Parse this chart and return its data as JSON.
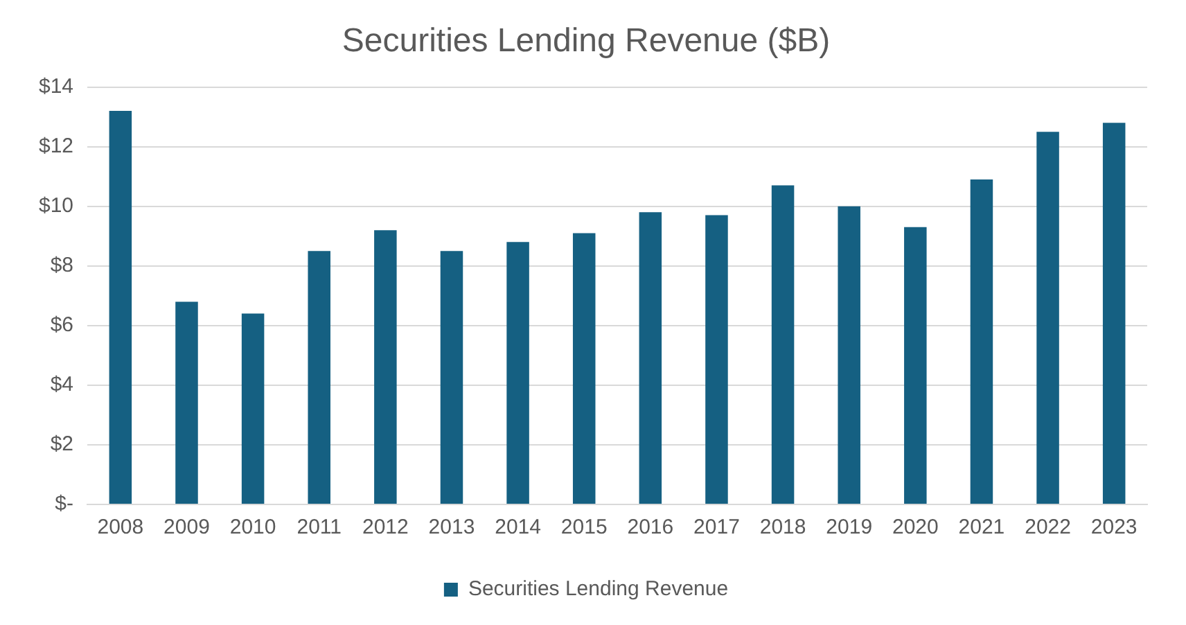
{
  "chart_data": {
    "type": "bar",
    "title": "Securities Lending Revenue ($B)",
    "categories": [
      "2008",
      "2009",
      "2010",
      "2011",
      "2012",
      "2013",
      "2014",
      "2015",
      "2016",
      "2017",
      "2018",
      "2019",
      "2020",
      "2021",
      "2022",
      "2023"
    ],
    "series": [
      {
        "name": "Securities Lending Revenue",
        "color": "#156082",
        "values": [
          13.2,
          6.8,
          6.4,
          8.5,
          9.2,
          8.5,
          8.8,
          9.1,
          9.8,
          9.7,
          10.7,
          10.0,
          9.3,
          10.9,
          12.5,
          12.8
        ]
      }
    ],
    "ylim": [
      0,
      14
    ],
    "yticks": [
      {
        "value": 0,
        "label": "$-"
      },
      {
        "value": 2,
        "label": "$2"
      },
      {
        "value": 4,
        "label": "$4"
      },
      {
        "value": 6,
        "label": "$6"
      },
      {
        "value": 8,
        "label": "$8"
      },
      {
        "value": 10,
        "label": "$10"
      },
      {
        "value": 12,
        "label": "$12"
      },
      {
        "value": 14,
        "label": "$14"
      }
    ],
    "grid": "y",
    "legend": "bottom"
  }
}
